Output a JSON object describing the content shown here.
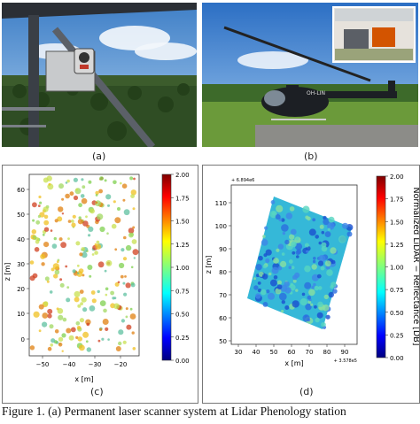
{
  "panel_labels": {
    "a": "(a)",
    "b": "(b)",
    "c": "(c)",
    "d": "(d)"
  },
  "photo_a": {
    "description_icon": "tower-scanner-photo"
  },
  "photo_b": {
    "description_icon": "helicopter-photo",
    "tail_text": "OH-LIN"
  },
  "plot_c": {
    "xlabel": "x [m]",
    "ylabel": "z [m]",
    "xticks": [
      "−50",
      "−40",
      "−30",
      "−20"
    ],
    "yticks": [
      "60",
      "50",
      "40",
      "30",
      "20",
      "10",
      "0"
    ],
    "colorbar_ticks": [
      "2.00",
      "1.75",
      "1.50",
      "1.25",
      "1.00",
      "0.75",
      "0.50",
      "0.25",
      "0.00"
    ]
  },
  "plot_d": {
    "xlabel": "x [m]",
    "ylabel": "z [m]",
    "offset_top": "+ 6.894e6",
    "offset_right": "+ 3.578e5",
    "xticks": [
      "30",
      "40",
      "50",
      "60",
      "70",
      "80",
      "90"
    ],
    "yticks": [
      "110",
      "100",
      "90",
      "80",
      "70",
      "60",
      "50"
    ],
    "colorbar_label": "Normalized LiDAR − Reflectance [DB]",
    "colorbar_ticks": [
      "2.00",
      "1.75",
      "1.50",
      "1.25",
      "1.00",
      "0.75",
      "0.50",
      "0.25",
      "0.00"
    ]
  },
  "caption": "Figure 1. (a) Permanent laser scanner system at Lidar Phenology station"
}
